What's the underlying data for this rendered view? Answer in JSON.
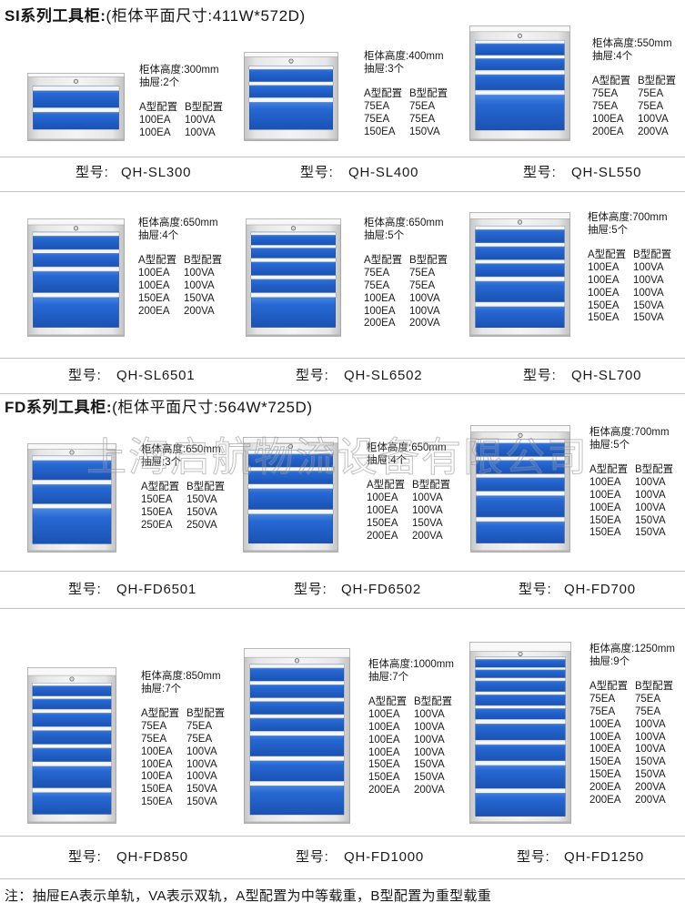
{
  "series": [
    {
      "title": "SI系列工具柜:",
      "size_note": "(柜体平面尺寸:411W*572D)",
      "products": [
        {
          "height_label": "柜体高度:300mm",
          "drawers_label": "抽屉:2个",
          "config_header": {
            "a": "A型配置",
            "b": "B型配置"
          },
          "configs": [
            {
              "a": "100EA",
              "b": "100VA"
            },
            {
              "a": "100EA",
              "b": "100VA"
            }
          ],
          "model_label": "型号:",
          "model": "QH-SL300"
        },
        {
          "height_label": "柜体高度:400mm",
          "drawers_label": "抽屉:3个",
          "config_header": {
            "a": "A型配置",
            "b": "B型配置"
          },
          "configs": [
            {
              "a": "75EA",
              "b": "75EA"
            },
            {
              "a": "75EA",
              "b": "75EA"
            },
            {
              "a": "150EA",
              "b": "150VA"
            }
          ],
          "model_label": "型号:",
          "model": "QH-SL400"
        },
        {
          "height_label": "柜体高度:550mm",
          "drawers_label": "抽屉:4个",
          "config_header": {
            "a": "A型配置",
            "b": "B型配置"
          },
          "configs": [
            {
              "a": "75EA",
              "b": "75EA"
            },
            {
              "a": "75EA",
              "b": "75EA"
            },
            {
              "a": "100EA",
              "b": "100VA"
            },
            {
              "a": "200EA",
              "b": "200VA"
            }
          ],
          "model_label": "型号:",
          "model": "QH-SL550"
        },
        {
          "height_label": "柜体高度:650mm",
          "drawers_label": "抽屉:4个",
          "config_header": {
            "a": "A型配置",
            "b": "B型配置"
          },
          "configs": [
            {
              "a": "100EA",
              "b": "100VA"
            },
            {
              "a": "100EA",
              "b": "100VA"
            },
            {
              "a": "150EA",
              "b": "150VA"
            },
            {
              "a": "200EA",
              "b": "200VA"
            }
          ],
          "model_label": "型号:",
          "model": "QH-SL6501"
        },
        {
          "height_label": "柜体高度:650mm",
          "drawers_label": "抽屉:5个",
          "config_header": {
            "a": "A型配置",
            "b": "B型配置"
          },
          "configs": [
            {
              "a": "75EA",
              "b": "75EA"
            },
            {
              "a": "75EA",
              "b": "75EA"
            },
            {
              "a": "100EA",
              "b": "100VA"
            },
            {
              "a": "100EA",
              "b": "100VA"
            },
            {
              "a": "200EA",
              "b": "200VA"
            }
          ],
          "model_label": "型号:",
          "model": "QH-SL6502"
        },
        {
          "height_label": "柜体高度:700mm",
          "drawers_label": "抽屉:5个",
          "config_header": {
            "a": "A型配置",
            "b": "B型配置"
          },
          "configs": [
            {
              "a": "100EA",
              "b": "100VA"
            },
            {
              "a": "100EA",
              "b": "100VA"
            },
            {
              "a": "100EA",
              "b": "100VA"
            },
            {
              "a": "150EA",
              "b": "150VA"
            },
            {
              "a": "150EA",
              "b": "150VA"
            }
          ],
          "model_label": "型号:",
          "model": "QH-SL700"
        }
      ]
    },
    {
      "title": "FD系列工具柜:",
      "size_note": "(柜体平面尺寸:564W*725D)",
      "products": [
        {
          "height_label": "柜体高度:650mm",
          "drawers_label": "抽屉:3个",
          "config_header": {
            "a": "A型配置",
            "b": "B型配置"
          },
          "configs": [
            {
              "a": "150EA",
              "b": "150VA"
            },
            {
              "a": "150EA",
              "b": "150VA"
            },
            {
              "a": "250EA",
              "b": "250VA"
            }
          ],
          "model_label": "型号:",
          "model": "QH-FD6501"
        },
        {
          "height_label": "柜体高度:650mm",
          "drawers_label": "抽屉:4个",
          "config_header": {
            "a": "A型配置",
            "b": "B型配置"
          },
          "configs": [
            {
              "a": "100EA",
              "b": "100VA"
            },
            {
              "a": "100EA",
              "b": "100VA"
            },
            {
              "a": "150EA",
              "b": "150VA"
            },
            {
              "a": "200EA",
              "b": "200VA"
            }
          ],
          "model_label": "型号:",
          "model": "QH-FD6502"
        },
        {
          "height_label": "柜体高度:700mm",
          "drawers_label": "抽屉:5个",
          "config_header": {
            "a": "A型配置",
            "b": "B型配置"
          },
          "configs": [
            {
              "a": "100EA",
              "b": "100VA"
            },
            {
              "a": "100EA",
              "b": "100VA"
            },
            {
              "a": "100EA",
              "b": "100VA"
            },
            {
              "a": "150EA",
              "b": "150VA"
            },
            {
              "a": "150EA",
              "b": "150VA"
            }
          ],
          "model_label": "型号:",
          "model": "QH-FD700"
        },
        {
          "height_label": "柜体高度:850mm",
          "drawers_label": "抽屉:7个",
          "config_header": {
            "a": "A型配置",
            "b": "B型配置"
          },
          "configs": [
            {
              "a": "75EA",
              "b": "75EA"
            },
            {
              "a": "75EA",
              "b": "75EA"
            },
            {
              "a": "100EA",
              "b": "100VA"
            },
            {
              "a": "100EA",
              "b": "100VA"
            },
            {
              "a": "100EA",
              "b": "100VA"
            },
            {
              "a": "150EA",
              "b": "150VA"
            },
            {
              "a": "150EA",
              "b": "150VA"
            }
          ],
          "model_label": "型号:",
          "model": "QH-FD850"
        },
        {
          "height_label": "柜体高度:1000mm",
          "drawers_label": "抽屉:7个",
          "config_header": {
            "a": "A型配置",
            "b": "B型配置"
          },
          "configs": [
            {
              "a": "100EA",
              "b": "100VA"
            },
            {
              "a": "100EA",
              "b": "100VA"
            },
            {
              "a": "100EA",
              "b": "100VA"
            },
            {
              "a": "100EA",
              "b": "100VA"
            },
            {
              "a": "150EA",
              "b": "150VA"
            },
            {
              "a": "150EA",
              "b": "150VA"
            },
            {
              "a": "200EA",
              "b": "200VA"
            }
          ],
          "model_label": "型号:",
          "model": "QH-FD1000"
        },
        {
          "height_label": "柜体高度:1250mm",
          "drawers_label": "抽屉:9个",
          "config_header": {
            "a": "A型配置",
            "b": "B型配置"
          },
          "configs": [
            {
              "a": "75EA",
              "b": "75EA"
            },
            {
              "a": "75EA",
              "b": "75EA"
            },
            {
              "a": "100EA",
              "b": "100VA"
            },
            {
              "a": "100EA",
              "b": "100VA"
            },
            {
              "a": "100EA",
              "b": "100VA"
            },
            {
              "a": "150EA",
              "b": "150VA"
            },
            {
              "a": "150EA",
              "b": "150VA"
            },
            {
              "a": "200EA",
              "b": "200VA"
            },
            {
              "a": "200EA",
              "b": "200VA"
            }
          ],
          "model_label": "型号:",
          "model": "QH-FD1250"
        }
      ]
    }
  ],
  "watermark": "上海启航物流设备有限公司",
  "footnote": "注：抽屉EA表示单轨，VA表示双轨，A型配置为中等载重，B型配置为重型载重",
  "colors": {
    "drawer_blue": "#2768d3",
    "drawer_blue_dark": "#1a52b3",
    "cabinet_gray": "#e6e6e6"
  }
}
